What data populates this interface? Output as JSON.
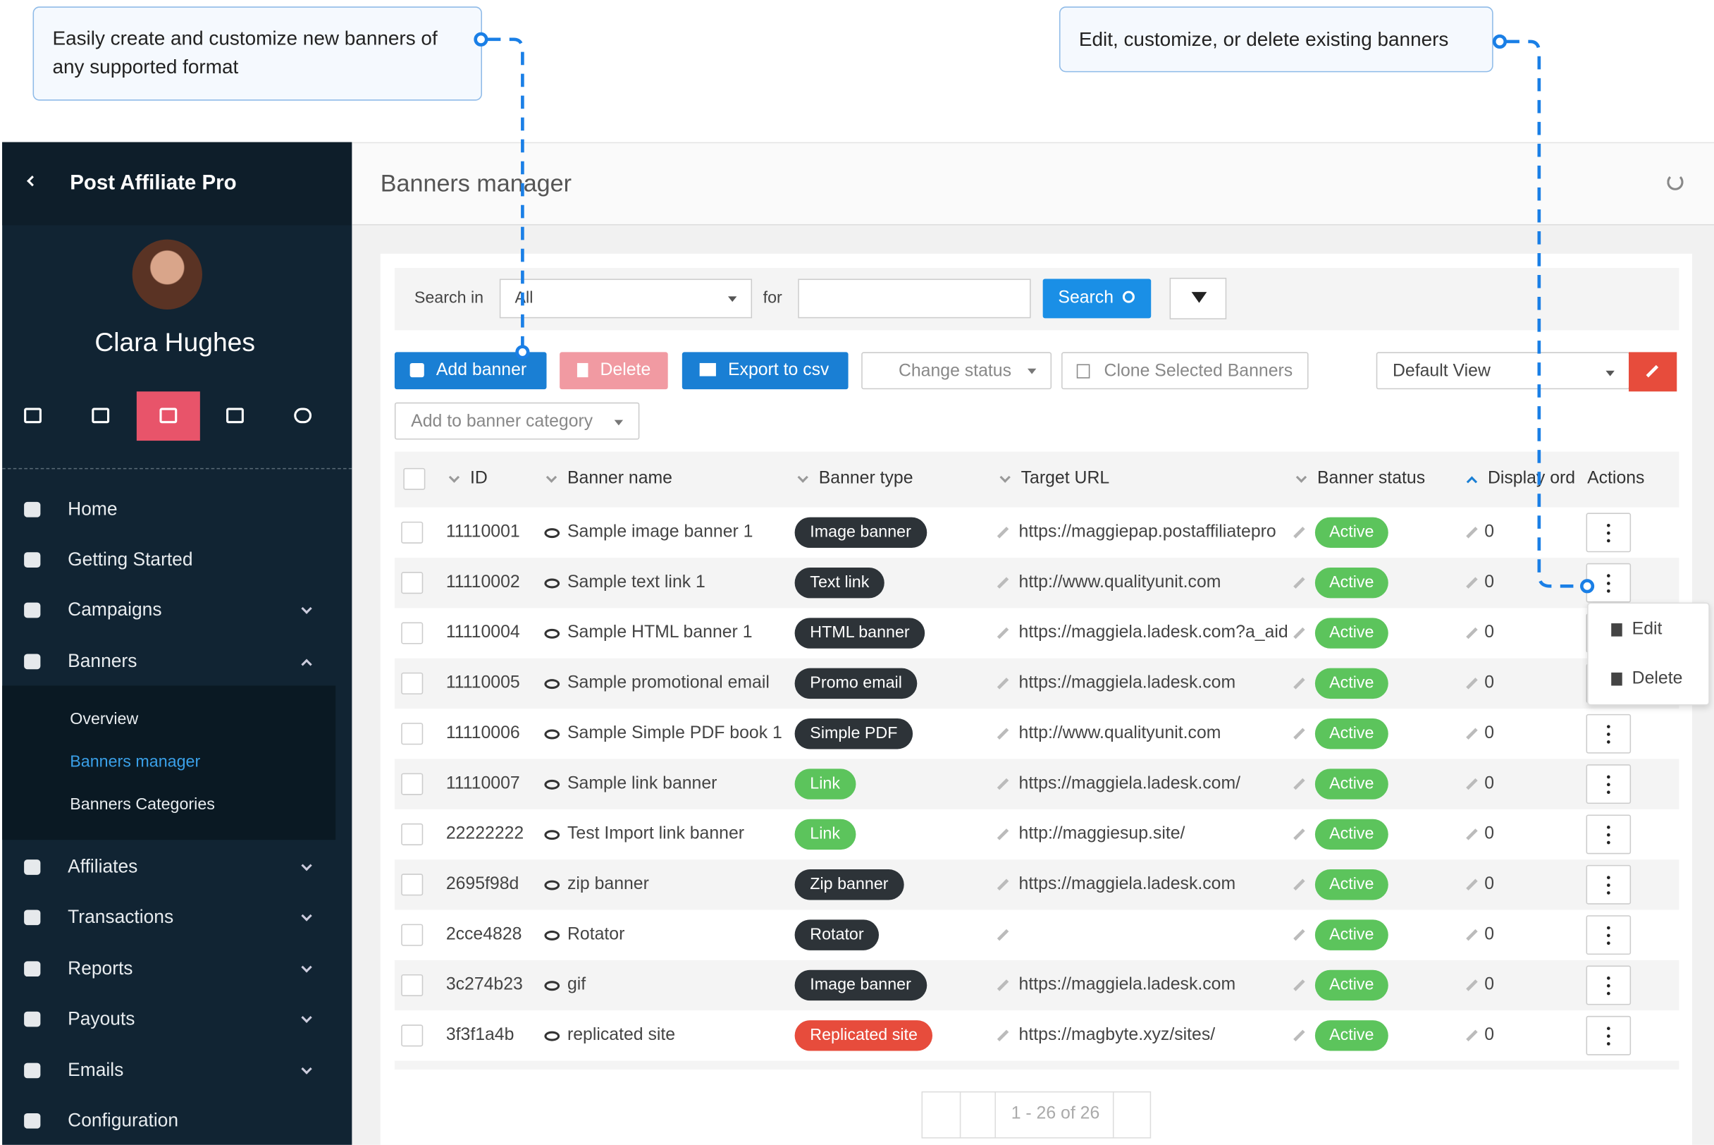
{
  "callouts": [
    "Easily create and customize new banners of any supported format",
    "Edit, customize, or delete existing banners"
  ],
  "sidebar": {
    "app_name": "Post Affiliate Pro",
    "user_name": "Clara Hughes",
    "menu": [
      "Home",
      "Getting Started",
      "Campaigns",
      "Banners",
      "Affiliates",
      "Transactions",
      "Reports",
      "Payouts",
      "Emails",
      "Configuration"
    ],
    "submenu": [
      "Overview",
      "Banners manager",
      "Banners Categories"
    ]
  },
  "header": {
    "title": "Banners manager"
  },
  "search": {
    "search_in_label": "Search in",
    "search_in_value": "All",
    "for_label": "for",
    "search_button": "Search"
  },
  "toolbar": {
    "add": "Add banner",
    "delete": "Delete",
    "export": "Export to csv",
    "change_status": "Change status",
    "clone": "Clone Selected Banners",
    "view": "Default View",
    "add_category": "Add to banner category"
  },
  "table": {
    "columns": [
      "ID",
      "Banner name",
      "Banner type",
      "Target URL",
      "Banner status",
      "Display ord",
      "Actions"
    ],
    "rows": [
      {
        "id": "11110001",
        "name": "Sample image banner 1",
        "type": "Image banner",
        "type_color": "#2d3338",
        "url": "https://maggiepap.postaffiliatepro",
        "status": "Active",
        "order": 0
      },
      {
        "id": "11110002",
        "name": "Sample text link 1",
        "type": "Text link",
        "type_color": "#2d3338",
        "url": "http://www.qualityunit.com",
        "status": "Active",
        "order": 0
      },
      {
        "id": "11110004",
        "name": "Sample HTML banner 1",
        "type": "HTML banner",
        "type_color": "#2d3338",
        "url": "https://maggiela.ladesk.com?a_aid",
        "status": "Active",
        "order": 0
      },
      {
        "id": "11110005",
        "name": "Sample promotional email",
        "type": "Promo email",
        "type_color": "#2d3338",
        "url": "https://maggiela.ladesk.com",
        "status": "Active",
        "order": 0
      },
      {
        "id": "11110006",
        "name": "Sample Simple PDF book 1",
        "type": "Simple PDF",
        "type_color": "#2d3338",
        "url": "http://www.qualityunit.com",
        "status": "Active",
        "order": 0
      },
      {
        "id": "11110007",
        "name": "Sample link banner",
        "type": "Link",
        "type_color": "#5cc45c",
        "url": "https://maggiela.ladesk.com/",
        "status": "Active",
        "order": 0
      },
      {
        "id": "22222222",
        "name": "Test Import link banner",
        "type": "Link",
        "type_color": "#5cc45c",
        "url": "http://maggiesup.site/",
        "status": "Active",
        "order": 0
      },
      {
        "id": "2695f98d",
        "name": "zip banner",
        "type": "Zip banner",
        "type_color": "#2d3338",
        "url": "https://maggiela.ladesk.com",
        "status": "Active",
        "order": 0
      },
      {
        "id": "2cce4828",
        "name": "Rotator",
        "type": "Rotator",
        "type_color": "#2d3338",
        "url": "",
        "status": "Active",
        "order": 0
      },
      {
        "id": "3c274b23",
        "name": "gif",
        "type": "Image banner",
        "type_color": "#2d3338",
        "url": "https://maggiela.ladesk.com",
        "status": "Active",
        "order": 0
      },
      {
        "id": "3f3f1a4b",
        "name": "replicated site",
        "type": "Replicated site",
        "type_color": "#e74c3c",
        "url": "https://magbyte.xyz/sites/",
        "status": "Active",
        "order": 0
      }
    ]
  },
  "row_menu": [
    "Edit",
    "Delete"
  ],
  "pagination": "1 - 26 of 26"
}
